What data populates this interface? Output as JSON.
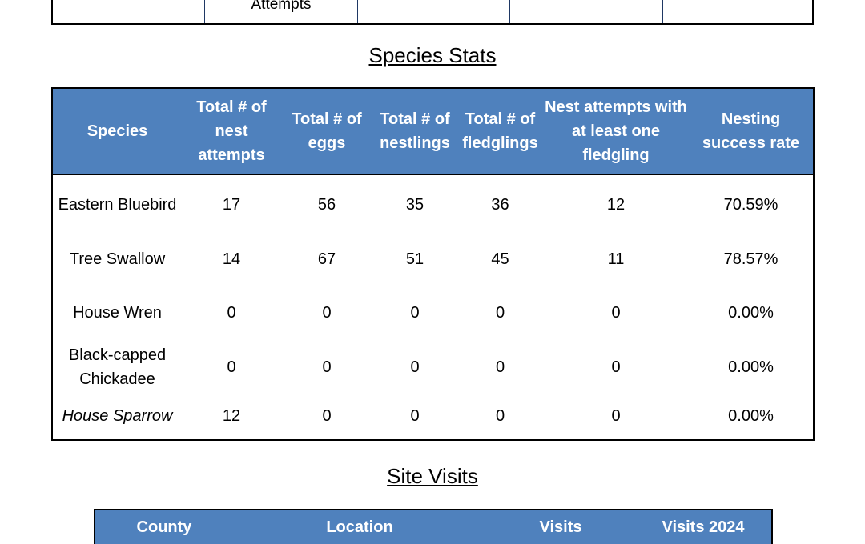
{
  "top_table": {
    "partial_label": "Attempts"
  },
  "species_stats": {
    "title": "Species Stats",
    "headers": [
      "Species",
      "Total # of nest attempts",
      "Total # of eggs",
      "Total # of nestlings",
      "Total # of fledglings",
      "Nest attempts with at least one fledgling",
      "Nesting success rate"
    ],
    "rows": [
      {
        "species": "Eastern Bluebird",
        "nest_attempts": "17",
        "eggs": "56",
        "nestlings": "35",
        "fledglings": "36",
        "attempts_with_fledgling": "12",
        "success_rate": "70.59%"
      },
      {
        "species": "Tree Swallow",
        "nest_attempts": "14",
        "eggs": "67",
        "nestlings": "51",
        "fledglings": "45",
        "attempts_with_fledgling": "11",
        "success_rate": "78.57%"
      },
      {
        "species": "House Wren",
        "nest_attempts": "0",
        "eggs": "0",
        "nestlings": "0",
        "fledglings": "0",
        "attempts_with_fledgling": "0",
        "success_rate": "0.00%"
      },
      {
        "species": "Black-capped Chickadee",
        "nest_attempts": "0",
        "eggs": "0",
        "nestlings": "0",
        "fledglings": "0",
        "attempts_with_fledgling": "0",
        "success_rate": "0.00%"
      },
      {
        "species": "House Sparrow",
        "nest_attempts": "12",
        "eggs": "0",
        "nestlings": "0",
        "fledglings": "0",
        "attempts_with_fledgling": "0",
        "success_rate": "0.00%"
      }
    ]
  },
  "site_visits": {
    "title": "Site Visits",
    "headers": [
      "County",
      "Location",
      "Visits",
      "Visits 2024"
    ]
  },
  "colors": {
    "header_bg": "#4f81bd",
    "header_text": "#ffffff"
  }
}
